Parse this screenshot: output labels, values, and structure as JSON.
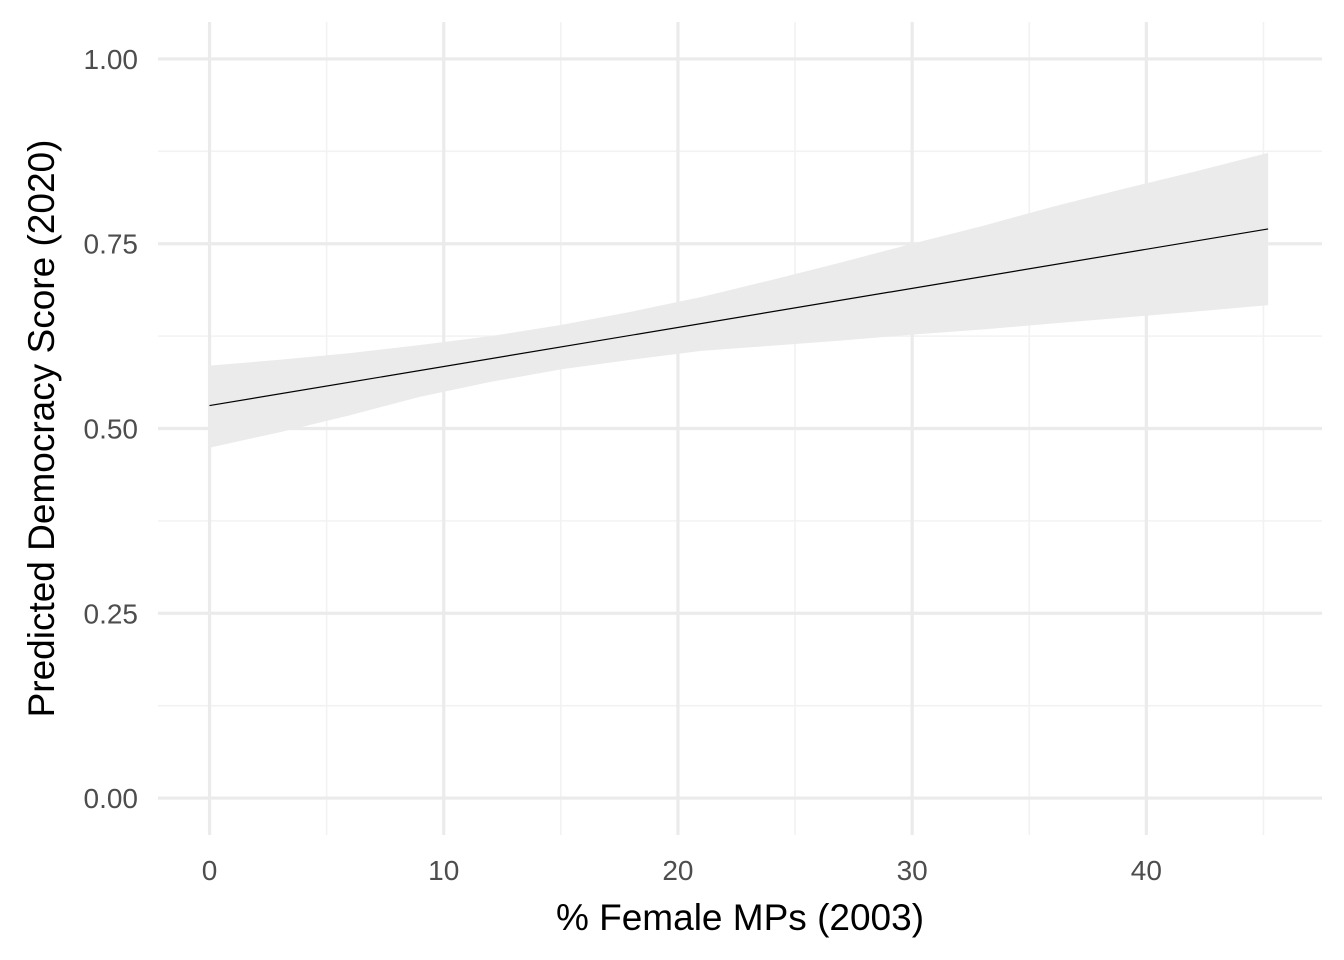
{
  "chart_data": {
    "type": "line",
    "title": "",
    "xlabel": "% Female MPs (2003)",
    "ylabel": "Predicted Democracy Score (2020)",
    "xlim": [
      -2.2,
      47.5
    ],
    "ylim": [
      -0.05,
      1.05
    ],
    "x_ticks": [
      0,
      10,
      20,
      30,
      40
    ],
    "x_tick_labels": [
      "0",
      "10",
      "20",
      "30",
      "40"
    ],
    "x_minor_ticks": [
      5,
      15,
      25,
      35,
      45
    ],
    "y_ticks": [
      0,
      0.25,
      0.5,
      0.75,
      1.0
    ],
    "y_tick_labels": [
      "0.00",
      "0.25",
      "0.50",
      "0.75",
      "1.00"
    ],
    "y_minor_ticks": [
      0.125,
      0.375,
      0.625,
      0.875
    ],
    "grid": true,
    "legend": "none",
    "series": [
      {
        "x": [
          0,
          45.2
        ],
        "y": [
          0.531,
          0.77
        ],
        "color": "#000000"
      }
    ],
    "ribbon": {
      "x": [
        0,
        3,
        6,
        9,
        12,
        15,
        18,
        21,
        24,
        27,
        30,
        33,
        36,
        39,
        42,
        45.2
      ],
      "lower": [
        0.474,
        0.495,
        0.518,
        0.543,
        0.563,
        0.58,
        0.593,
        0.605,
        0.612,
        0.619,
        0.627,
        0.634,
        0.642,
        0.65,
        0.658,
        0.667
      ],
      "upper": [
        0.585,
        0.593,
        0.602,
        0.613,
        0.625,
        0.64,
        0.658,
        0.678,
        0.701,
        0.725,
        0.75,
        0.774,
        0.8,
        0.824,
        0.847,
        0.873
      ],
      "color": "#ebebeb"
    },
    "colors": {
      "grid_major": "#ebebeb",
      "grid_minor": "#f2f2f2",
      "ribbon": "#ebebeb",
      "line": "#000000",
      "tick_text": "#4d4d4d"
    }
  }
}
